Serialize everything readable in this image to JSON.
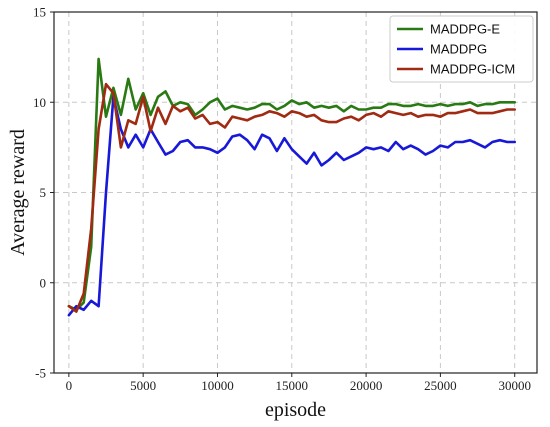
{
  "chart_data": {
    "type": "line",
    "title": "",
    "xlabel": "episode",
    "ylabel": "Average reward",
    "xlim": [
      -1000,
      31500
    ],
    "ylim": [
      -5,
      15
    ],
    "xticks": [
      0,
      5000,
      10000,
      15000,
      20000,
      25000,
      30000
    ],
    "yticks": [
      -5,
      0,
      5,
      10,
      15
    ],
    "grid": true,
    "legend_position": "top-right",
    "series": [
      {
        "name": "MADDPG-E",
        "color": "#2a7a14",
        "x": [
          0,
          500,
          1000,
          1500,
          2000,
          2500,
          3000,
          3500,
          4000,
          4500,
          5000,
          5500,
          6000,
          6500,
          7000,
          7500,
          8000,
          8500,
          9000,
          9500,
          10000,
          10500,
          11000,
          11500,
          12000,
          12500,
          13000,
          13500,
          14000,
          14500,
          15000,
          15500,
          16000,
          16500,
          17000,
          17500,
          18000,
          18500,
          19000,
          19500,
          20000,
          20500,
          21000,
          21500,
          22000,
          22500,
          23000,
          23500,
          24000,
          24500,
          25000,
          25500,
          26000,
          26500,
          27000,
          27500,
          28000,
          28500,
          29000,
          29500,
          30000
        ],
        "y": [
          -1.3,
          -1.5,
          -1.1,
          2.0,
          12.4,
          9.2,
          10.8,
          9.3,
          11.3,
          9.6,
          10.5,
          9.3,
          10.3,
          10.6,
          9.8,
          10.0,
          9.9,
          9.3,
          9.6,
          10.0,
          10.2,
          9.6,
          9.8,
          9.7,
          9.6,
          9.7,
          9.9,
          9.9,
          9.6,
          9.8,
          10.1,
          9.9,
          10.0,
          9.7,
          9.8,
          9.7,
          9.8,
          9.5,
          9.8,
          9.6,
          9.6,
          9.7,
          9.7,
          9.9,
          9.9,
          9.8,
          9.8,
          9.9,
          9.8,
          9.8,
          9.9,
          9.8,
          9.9,
          9.9,
          10.0,
          9.8,
          9.9,
          9.9,
          10.0,
          10.0,
          10.0
        ]
      },
      {
        "name": "MADDPG",
        "color": "#1818d8",
        "x": [
          0,
          500,
          1000,
          1500,
          2000,
          2500,
          3000,
          3500,
          4000,
          4500,
          5000,
          5500,
          6000,
          6500,
          7000,
          7500,
          8000,
          8500,
          9000,
          9500,
          10000,
          10500,
          11000,
          11500,
          12000,
          12500,
          13000,
          13500,
          14000,
          14500,
          15000,
          15500,
          16000,
          16500,
          17000,
          17500,
          18000,
          18500,
          19000,
          19500,
          20000,
          20500,
          21000,
          21500,
          22000,
          22500,
          23000,
          23500,
          24000,
          24500,
          25000,
          25500,
          26000,
          26500,
          27000,
          27500,
          28000,
          28500,
          29000,
          29500,
          30000
        ],
        "y": [
          -1.8,
          -1.3,
          -1.5,
          -1.0,
          -1.3,
          5.0,
          10.3,
          8.5,
          7.5,
          8.2,
          7.5,
          8.5,
          7.8,
          7.1,
          7.3,
          7.8,
          7.9,
          7.5,
          7.5,
          7.4,
          7.2,
          7.5,
          8.1,
          8.2,
          7.9,
          7.4,
          8.2,
          8.0,
          7.3,
          8.0,
          7.4,
          7.0,
          6.6,
          7.2,
          6.5,
          6.8,
          7.2,
          6.8,
          7.0,
          7.2,
          7.5,
          7.4,
          7.5,
          7.3,
          7.8,
          7.4,
          7.6,
          7.4,
          7.1,
          7.3,
          7.6,
          7.5,
          7.8,
          7.8,
          7.9,
          7.7,
          7.5,
          7.8,
          7.9,
          7.8,
          7.8
        ]
      },
      {
        "name": "MADDPG-ICM",
        "color": "#a02a12",
        "x": [
          0,
          500,
          1000,
          1500,
          2000,
          2500,
          3000,
          3500,
          4000,
          4500,
          5000,
          5500,
          6000,
          6500,
          7000,
          7500,
          8000,
          8500,
          9000,
          9500,
          10000,
          10500,
          11000,
          11500,
          12000,
          12500,
          13000,
          13500,
          14000,
          14500,
          15000,
          15500,
          16000,
          16500,
          17000,
          17500,
          18000,
          18500,
          19000,
          19500,
          20000,
          20500,
          21000,
          21500,
          22000,
          22500,
          23000,
          23500,
          24000,
          24500,
          25000,
          25500,
          26000,
          26500,
          27000,
          27500,
          28000,
          28500,
          29000,
          29500,
          30000
        ],
        "y": [
          -1.3,
          -1.6,
          -0.6,
          3.0,
          8.5,
          11.0,
          10.5,
          7.5,
          9.0,
          8.8,
          10.3,
          8.4,
          9.7,
          8.8,
          9.8,
          9.5,
          9.7,
          9.1,
          9.3,
          8.8,
          8.9,
          8.6,
          9.2,
          9.1,
          9.0,
          9.2,
          9.3,
          9.5,
          9.4,
          9.2,
          9.5,
          9.4,
          9.2,
          9.3,
          9.0,
          8.9,
          8.9,
          9.1,
          9.2,
          9.0,
          9.3,
          9.4,
          9.2,
          9.5,
          9.4,
          9.3,
          9.4,
          9.2,
          9.3,
          9.3,
          9.2,
          9.4,
          9.4,
          9.5,
          9.6,
          9.4,
          9.4,
          9.4,
          9.5,
          9.6,
          9.6
        ]
      }
    ]
  }
}
